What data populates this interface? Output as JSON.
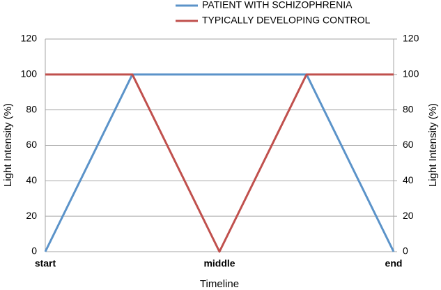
{
  "chart_data": {
    "type": "line",
    "xlabel": "Timeline",
    "ylabel": "Light Intensity (%)",
    "y2label": "Light Intensity (%)",
    "categories": [
      "start",
      null,
      "middle",
      null,
      "end"
    ],
    "series": [
      {
        "name": "PATIENT WITH SCHIZOPHRENIA",
        "color": "#5b93c9",
        "values": [
          0,
          100,
          100,
          100,
          0
        ]
      },
      {
        "name": "TYPICALLY DEVELOPING CONTROL",
        "color": "#c0504d",
        "values": [
          100,
          100,
          0,
          100,
          100
        ]
      }
    ],
    "ylim": [
      0,
      120
    ],
    "yticks": [
      0,
      20,
      40,
      60,
      80,
      100,
      120
    ],
    "y2lim": [
      0,
      120
    ],
    "y2ticks": [
      0,
      20,
      40,
      60,
      80,
      100,
      120
    ],
    "grid": true
  }
}
